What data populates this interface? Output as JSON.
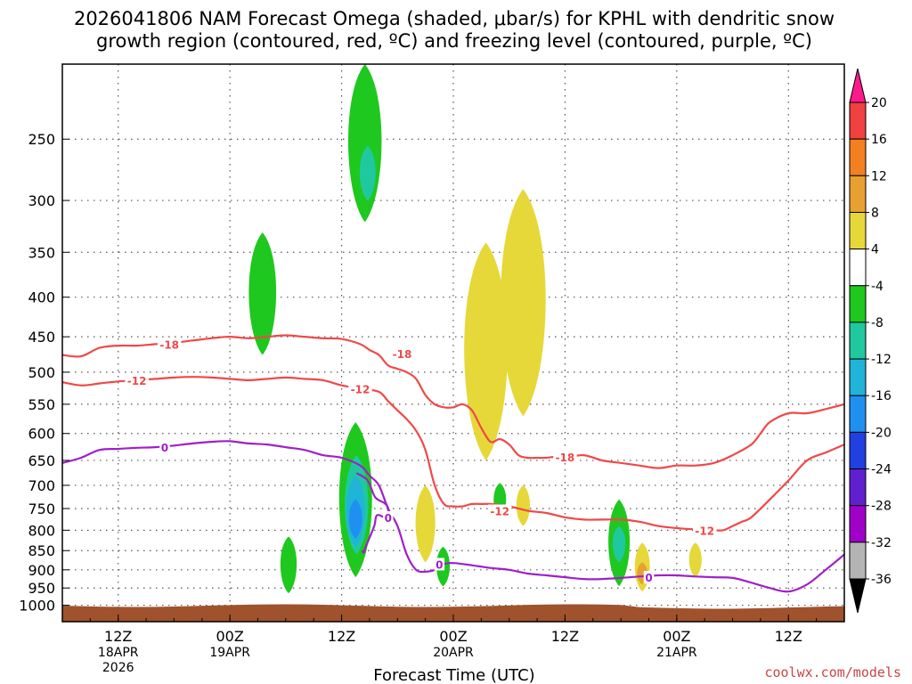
{
  "header": {
    "title_line1": "2026041806 NAM Forecast Omega (shaded, μbar/s) for KPHL with dendritic snow",
    "title_line2": "growth region (contoured, red, ºC) and freezing level (contoured, purple, ºC)"
  },
  "footer": {
    "credit": "coolwx.com/models"
  },
  "chart_data": {
    "type": "heatmap",
    "title": "2026041806 NAM Forecast Omega (shaded, μbar/s) for KPHL with dendritic snow growth region (contoured, red, ºC) and freezing level (contoured, purple, ºC)",
    "xlabel": "Forecast Time (UTC)",
    "ylabel": "",
    "x_unit": "forecast hour",
    "xlim": [
      0,
      84
    ],
    "ylim_hpa": [
      1050,
      200
    ],
    "y_ticks": [
      250,
      300,
      350,
      400,
      450,
      500,
      550,
      600,
      650,
      700,
      750,
      800,
      850,
      900,
      950,
      1000
    ],
    "x_ticks": [
      {
        "hour": 6,
        "time": "12Z",
        "date": "18APR",
        "year": "2026"
      },
      {
        "hour": 18,
        "time": "00Z",
        "date": "19APR",
        "year": ""
      },
      {
        "hour": 30,
        "time": "12Z",
        "date": "",
        "year": ""
      },
      {
        "hour": 42,
        "time": "00Z",
        "date": "20APR",
        "year": ""
      },
      {
        "hour": 54,
        "time": "12Z",
        "date": "",
        "year": ""
      },
      {
        "hour": 66,
        "time": "00Z",
        "date": "21APR",
        "year": ""
      },
      {
        "hour": 78,
        "time": "12Z",
        "date": "",
        "year": ""
      }
    ],
    "colorbar": {
      "unit": "μbar/s",
      "labels": [
        "20",
        "16",
        "12",
        "8",
        "4",
        "-4",
        "-8",
        "-12",
        "-16",
        "-20",
        "-24",
        "-28",
        "-32",
        "-36"
      ],
      "colors": [
        "#ff1a8c",
        "#f04040",
        "#f28020",
        "#e8a030",
        "#e6d838",
        "#ffffff",
        "#1ec81e",
        "#20c8a0",
        "#20b4d8",
        "#2090f0",
        "#2040e0",
        "#6020d0",
        "#a000c8",
        "#b4b4b4",
        "#000000"
      ]
    },
    "shading_regions": [
      {
        "level": "-8",
        "color": "#1ec81e",
        "hour": 32.5,
        "hpa_top": 200,
        "hpa_bottom": 320
      },
      {
        "level": "-12",
        "color": "#20c8a0",
        "hour": 32.8,
        "hpa_top": 255,
        "hpa_bottom": 300
      },
      {
        "level": "-8",
        "color": "#1ec81e",
        "hour": 21.5,
        "hpa_top": 330,
        "hpa_bottom": 475
      },
      {
        "level": "-8",
        "color": "#1ec81e",
        "hour": 24.3,
        "hpa_top": 815,
        "hpa_bottom": 965
      },
      {
        "level": "-8",
        "color": "#1ec81e",
        "hour": 31.5,
        "hpa_top": 580,
        "hpa_bottom": 920
      },
      {
        "level": "-12",
        "color": "#20c8a0",
        "hour": 31.6,
        "hpa_top": 640,
        "hpa_bottom": 860
      },
      {
        "level": "-16",
        "color": "#20b4d8",
        "hour": 31.5,
        "hpa_top": 680,
        "hpa_bottom": 840
      },
      {
        "level": "-20",
        "color": "#2090f0",
        "hour": 31.5,
        "hpa_top": 730,
        "hpa_bottom": 820
      },
      {
        "level": "-8",
        "color": "#1ec81e",
        "hour": 40.9,
        "hpa_top": 840,
        "hpa_bottom": 945
      },
      {
        "level": "-8",
        "color": "#1ec81e",
        "hour": 47.0,
        "hpa_top": 695,
        "hpa_bottom": 770
      },
      {
        "level": "-8",
        "color": "#1ec81e",
        "hour": 59.8,
        "hpa_top": 730,
        "hpa_bottom": 945
      },
      {
        "level": "-12",
        "color": "#20c8a0",
        "hour": 59.8,
        "hpa_top": 790,
        "hpa_bottom": 880
      },
      {
        "level": "4",
        "color": "#e6d838",
        "hour": 49.5,
        "hpa_top": 290,
        "hpa_bottom": 570
      },
      {
        "level": "4",
        "color": "#e6d838",
        "hour": 45.5,
        "hpa_top": 340,
        "hpa_bottom": 650
      },
      {
        "level": "4",
        "color": "#e6d838",
        "hour": 49.5,
        "hpa_top": 700,
        "hpa_bottom": 790
      },
      {
        "level": "4",
        "color": "#e6d838",
        "hour": 39.0,
        "hpa_top": 700,
        "hpa_bottom": 880
      },
      {
        "level": "4",
        "color": "#e6d838",
        "hour": 62.3,
        "hpa_top": 830,
        "hpa_bottom": 960
      },
      {
        "level": "8",
        "color": "#e8a030",
        "hour": 62.3,
        "hpa_top": 880,
        "hpa_bottom": 940
      },
      {
        "level": "4",
        "color": "#e6d838",
        "hour": 68.0,
        "hpa_top": 830,
        "hpa_bottom": 920
      }
    ],
    "series": [
      {
        "name": "-18",
        "color": "#f04848",
        "x": [
          0,
          2,
          4,
          6,
          8,
          10,
          12,
          14,
          16,
          18,
          20,
          22,
          24,
          26,
          28,
          30,
          32,
          33,
          34,
          35,
          36,
          37,
          38,
          39,
          40,
          41,
          42,
          43,
          44,
          45,
          46,
          47,
          48,
          49,
          50,
          51,
          52,
          53,
          54,
          56,
          58,
          60,
          62,
          64,
          66,
          68,
          70,
          72,
          74,
          75,
          76,
          78,
          80,
          82,
          84
        ],
        "y": [
          475,
          477,
          465,
          462,
          462,
          460,
          458,
          455,
          452,
          450,
          452,
          450,
          448,
          450,
          452,
          453,
          460,
          468,
          475,
          490,
          495,
          500,
          510,
          535,
          550,
          555,
          555,
          550,
          560,
          590,
          615,
          610,
          620,
          640,
          645,
          645,
          645,
          643,
          645,
          640,
          650,
          655,
          660,
          665,
          660,
          660,
          655,
          640,
          620,
          600,
          580,
          565,
          565,
          558,
          550
        ]
      },
      {
        "name": "-12",
        "color": "#f04848",
        "x": [
          0,
          2,
          4,
          6,
          8,
          10,
          12,
          14,
          16,
          18,
          20,
          22,
          24,
          26,
          28,
          30,
          32,
          34,
          35,
          36,
          37,
          38,
          39,
          40,
          41,
          42,
          43,
          44,
          45,
          46,
          48,
          50,
          52,
          54,
          56,
          58,
          60,
          62,
          64,
          66,
          68,
          70,
          71,
          72,
          73,
          74,
          76,
          78,
          80,
          82,
          84
        ],
        "y": [
          515,
          520,
          517,
          514,
          512,
          510,
          508,
          507,
          508,
          510,
          512,
          510,
          508,
          510,
          512,
          520,
          525,
          530,
          545,
          560,
          575,
          595,
          630,
          700,
          740,
          745,
          745,
          740,
          740,
          740,
          745,
          755,
          760,
          770,
          775,
          775,
          775,
          780,
          790,
          795,
          798,
          800,
          800,
          790,
          780,
          770,
          730,
          690,
          650,
          635,
          620
        ]
      },
      {
        "name": "0",
        "color": "#a020c8",
        "x": [
          0,
          2,
          4,
          6,
          8,
          10,
          12,
          14,
          16,
          18,
          20,
          22,
          24,
          26,
          28,
          30,
          32,
          33,
          34,
          35,
          36,
          37,
          38,
          39,
          40,
          41,
          42,
          44,
          46,
          48,
          50,
          52,
          54,
          56,
          58,
          60,
          62,
          64,
          66,
          68,
          70,
          72,
          74,
          76,
          78,
          80,
          82,
          84
        ],
        "y": [
          655,
          645,
          630,
          628,
          626,
          625,
          622,
          618,
          615,
          614,
          618,
          620,
          625,
          630,
          640,
          645,
          660,
          680,
          700,
          750,
          790,
          860,
          900,
          905,
          900,
          885,
          882,
          888,
          895,
          900,
          910,
          915,
          920,
          925,
          925,
          922,
          918,
          915,
          915,
          918,
          920,
          922,
          935,
          950,
          960,
          940,
          900,
          860
        ]
      },
      {
        "name": "0 (closed loop)",
        "color": "#a020c8",
        "x": [
          31.6,
          32.8,
          33.6,
          34.6,
          35.0,
          34.8,
          33.8,
          33.5,
          32.6,
          32.4,
          32.2
        ],
        "y": [
          675,
          690,
          725,
          738,
          750,
          770,
          765,
          790,
          840,
          855,
          850
        ]
      }
    ],
    "contour_labels": [
      {
        "text": "-18",
        "hour": 11.5,
        "hpa": 460,
        "color": "#f04848"
      },
      {
        "text": "-18",
        "hour": 36.5,
        "hpa": 473,
        "color": "#f04848"
      },
      {
        "text": "-18",
        "hour": 54.0,
        "hpa": 643,
        "color": "#f04848"
      },
      {
        "text": "-12",
        "hour": 8.0,
        "hpa": 512,
        "color": "#f04848"
      },
      {
        "text": "-12",
        "hour": 32.0,
        "hpa": 525,
        "color": "#f04848"
      },
      {
        "text": "-12",
        "hour": 47.0,
        "hpa": 755,
        "color": "#f04848"
      },
      {
        "text": "-12",
        "hour": 69.0,
        "hpa": 800,
        "color": "#f04848"
      },
      {
        "text": "0",
        "hour": 11.0,
        "hpa": 625,
        "color": "#a020c8"
      },
      {
        "text": "0",
        "hour": 40.5,
        "hpa": 885,
        "color": "#a020c8"
      },
      {
        "text": "0",
        "hour": 63.0,
        "hpa": 920,
        "color": "#a020c8"
      },
      {
        "text": "0",
        "hour": 35.0,
        "hpa": 770,
        "color": "#a020c8"
      }
    ],
    "ground": {
      "label": "surface",
      "color": "#a0522d"
    }
  }
}
